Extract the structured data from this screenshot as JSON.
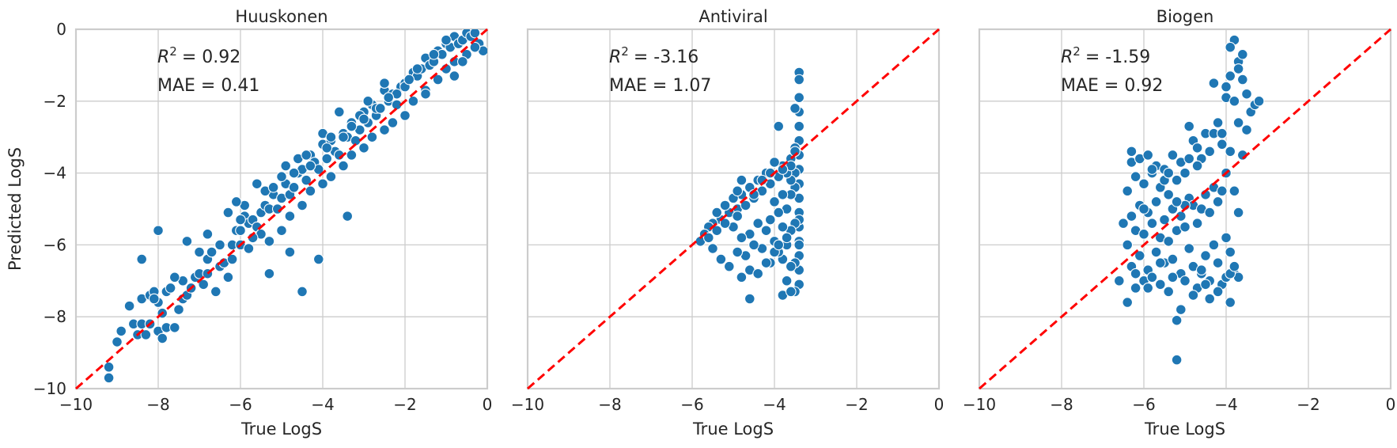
{
  "chart_data": [
    {
      "type": "scatter",
      "title": "Huuskonen",
      "xlabel": "True LogS",
      "ylabel": "Predicted LogS",
      "xlim": [
        -10,
        0
      ],
      "ylim": [
        -10,
        0
      ],
      "xticks": [
        "−10",
        "−8",
        "−6",
        "−4",
        "−2",
        "0"
      ],
      "yticks": [
        "−10",
        "−8",
        "−6",
        "−4",
        "−2",
        "0"
      ],
      "grid": true,
      "reference_line": "y = x",
      "annotations": {
        "r2_label": "R",
        "r2_value": "= 0.92",
        "mae": "MAE = 0.41"
      },
      "point_color": "#1f77b4",
      "line_color": "#ff0000",
      "x": [
        -9.2,
        -9.2,
        -9.0,
        -8.9,
        -8.7,
        -8.6,
        -8.5,
        -8.4,
        -8.4,
        -8.3,
        -8.2,
        -8.2,
        -8.1,
        -8.0,
        -8.0,
        -7.9,
        -7.9,
        -7.8,
        -7.8,
        -7.7,
        -7.6,
        -7.5,
        -7.4,
        -7.4,
        -7.3,
        -7.2,
        -7.1,
        -7.0,
        -7.0,
        -6.9,
        -6.8,
        -6.8,
        -6.7,
        -6.6,
        -6.5,
        -6.4,
        -6.3,
        -6.2,
        -6.2,
        -6.1,
        -6.0,
        -6.0,
        -5.9,
        -5.8,
        -5.8,
        -5.7,
        -5.6,
        -5.5,
        -5.5,
        -5.4,
        -5.3,
        -5.3,
        -5.2,
        -5.1,
        -5.0,
        -5.0,
        -4.9,
        -4.8,
        -4.8,
        -4.7,
        -4.6,
        -4.5,
        -4.5,
        -4.4,
        -4.3,
        -4.3,
        -4.2,
        -4.1,
        -4.0,
        -4.0,
        -3.9,
        -3.8,
        -3.8,
        -3.7,
        -3.6,
        -3.5,
        -3.5,
        -3.4,
        -3.3,
        -3.3,
        -3.2,
        -3.1,
        -3.0,
        -3.0,
        -2.9,
        -2.8,
        -2.8,
        -2.7,
        -2.6,
        -2.5,
        -2.5,
        -2.4,
        -2.3,
        -2.3,
        -2.2,
        -2.1,
        -2.0,
        -2.0,
        -1.9,
        -1.8,
        -1.8,
        -1.7,
        -1.6,
        -1.5,
        -1.5,
        -1.4,
        -1.3,
        -1.2,
        -1.2,
        -1.1,
        -1.0,
        -1.0,
        -0.9,
        -0.8,
        -0.8,
        -0.7,
        -0.6,
        -0.5,
        -0.5,
        -0.4,
        -0.3,
        -0.2,
        -0.1,
        -8.0,
        -8.4,
        -4.5,
        -4.1,
        -3.4,
        -4.8,
        -5.3,
        -6.5,
        -5.9,
        -4.0,
        -2.5,
        -1.3,
        -3.6,
        -5.6,
        -7.3,
        -2.9,
        -1.7,
        -4.6,
        -6.1,
        -3.1,
        -5.0,
        -2.2,
        -0.6,
        -1.0,
        -0.3,
        -2.7,
        -4.3,
        -6.8,
        -5.4,
        -3.8,
        -2.0,
        -1.5,
        -3.3,
        -4.9,
        -6.3,
        -7.6,
        -8.1,
        -0.8,
        -2.4,
        -3.9,
        -5.2,
        -4.4,
        -3.0,
        -1.9,
        -2.6,
        -3.5,
        -4.7,
        -6.0,
        -5.7
      ],
      "y": [
        -9.7,
        -9.4,
        -8.7,
        -8.4,
        -7.7,
        -8.2,
        -8.5,
        -7.5,
        -8.2,
        -8.5,
        -7.4,
        -8.2,
        -7.3,
        -7.6,
        -8.4,
        -8.6,
        -7.9,
        -7.3,
        -8.3,
        -7.2,
        -8.3,
        -7.8,
        -7.0,
        -7.5,
        -7.4,
        -7.2,
        -6.9,
        -6.8,
        -6.2,
        -7.1,
        -6.4,
        -6.8,
        -6.2,
        -7.3,
        -6.6,
        -6.5,
        -6.9,
        -6.0,
        -6.4,
        -5.6,
        -5.6,
        -6.0,
        -5.2,
        -5.4,
        -6.1,
        -5.3,
        -5.5,
        -5.1,
        -5.7,
        -4.9,
        -5.0,
        -5.9,
        -4.6,
        -5.0,
        -4.7,
        -5.6,
        -4.3,
        -4.6,
        -5.2,
        -4.4,
        -4.0,
        -3.9,
        -4.9,
        -4.2,
        -3.5,
        -4.5,
        -3.7,
        -3.9,
        -3.2,
        -4.3,
        -3.6,
        -3.1,
        -4.1,
        -3.4,
        -3.5,
        -2.9,
        -3.8,
        -3.0,
        -2.6,
        -3.5,
        -3.1,
        -2.8,
        -2.3,
        -3.3,
        -2.6,
        -2.1,
        -3.0,
        -2.4,
        -2.2,
        -1.7,
        -2.8,
        -2.0,
        -1.8,
        -2.6,
        -2.1,
        -1.6,
        -1.5,
        -2.4,
        -1.4,
        -1.2,
        -2.0,
        -1.3,
        -1.1,
        -0.8,
        -1.7,
        -1.0,
        -0.9,
        -0.6,
        -1.4,
        -0.7,
        -0.4,
        -1.1,
        -0.5,
        -0.2,
        -0.9,
        -0.4,
        -0.3,
        -0.1,
        -0.7,
        -0.2,
        -0.1,
        -0.4,
        -0.6,
        -5.6,
        -6.4,
        -7.3,
        -6.4,
        -5.2,
        -6.2,
        -6.8,
        -6.0,
        -4.9,
        -2.9,
        -1.5,
        -0.7,
        -2.3,
        -4.3,
        -5.9,
        -2.0,
        -1.1,
        -3.6,
        -4.8,
        -2.4,
        -4.1,
        -1.8,
        -0.9,
        -0.3,
        -0.5,
        -2.2,
        -3.8,
        -5.7,
        -4.5,
        -3.0,
        -1.6,
        -1.8,
        -2.7,
        -3.8,
        -5.1,
        -6.9,
        -7.5,
        -1.3,
        -1.9,
        -3.3,
        -4.4,
        -3.5,
        -2.5,
        -1.4,
        -2.2,
        -3.0,
        -4.0,
        -5.3,
        -5.8
      ]
    },
    {
      "type": "scatter",
      "title": "Antiviral",
      "xlabel": "True LogS",
      "ylabel": "",
      "xlim": [
        -10,
        0
      ],
      "ylim": [
        -10,
        0
      ],
      "xticks": [
        "−10",
        "−8",
        "−6",
        "−4",
        "−2",
        "0"
      ],
      "grid": true,
      "reference_line": "y = x",
      "annotations": {
        "r2_label": "R",
        "r2_value": "= -3.16",
        "mae": "MAE = 1.07"
      },
      "x": [
        -3.4,
        -3.4,
        -3.4,
        -3.4,
        -3.4,
        -3.4,
        -3.4,
        -3.4,
        -3.4,
        -3.4,
        -3.4,
        -3.4,
        -3.4,
        -3.4,
        -3.4,
        -3.4,
        -3.4,
        -3.4,
        -3.5,
        -3.5,
        -3.5,
        -3.5,
        -3.5,
        -3.5,
        -3.5,
        -3.6,
        -3.6,
        -3.6,
        -3.6,
        -3.6,
        -3.7,
        -3.7,
        -3.7,
        -3.7,
        -3.8,
        -3.8,
        -3.8,
        -3.8,
        -3.9,
        -3.9,
        -3.9,
        -4.0,
        -4.0,
        -4.0,
        -4.1,
        -4.1,
        -4.1,
        -4.2,
        -4.2,
        -4.3,
        -4.3,
        -4.4,
        -4.4,
        -4.5,
        -4.5,
        -4.6,
        -4.6,
        -4.7,
        -4.7,
        -4.8,
        -4.8,
        -4.9,
        -4.9,
        -5.0,
        -5.0,
        -5.1,
        -5.2,
        -5.3,
        -5.4,
        -5.5,
        -5.6,
        -5.7,
        -5.8,
        -5.5,
        -5.3,
        -5.1,
        -4.8,
        -4.6,
        -4.4,
        -4.2,
        -4.0,
        -3.9,
        -3.7,
        -3.5,
        -3.6,
        -3.8,
        -4.1,
        -4.3,
        -4.5,
        -4.7,
        -4.9,
        -5.2,
        -5.4,
        -5.6,
        -4.9,
        -3.8,
        -3.6,
        -3.9,
        -4.6,
        -4.8
      ],
      "y": [
        -1.2,
        -1.4,
        -1.9,
        -2.3,
        -2.7,
        -3.1,
        -3.5,
        -3.9,
        -4.3,
        -4.7,
        -5.1,
        -5.5,
        -5.9,
        -6.3,
        -6.7,
        -7.1,
        -6.0,
        -5.3,
        -2.2,
        -3.3,
        -4.4,
        -5.4,
        -6.5,
        -7.3,
        -4.0,
        -3.6,
        -4.6,
        -5.6,
        -6.6,
        -4.2,
        -4.0,
        -5.0,
        -6.0,
        -7.0,
        -3.8,
        -4.6,
        -5.5,
        -6.4,
        -4.1,
        -5.1,
        -6.2,
        -3.7,
        -4.8,
        -5.9,
        -4.3,
        -5.3,
        -6.5,
        -4.0,
        -5.6,
        -4.5,
        -6.1,
        -4.2,
        -5.4,
        -4.7,
        -6.0,
        -4.4,
        -5.7,
        -4.9,
        -6.3,
        -4.6,
        -5.8,
        -5.0,
        -6.2,
        -4.7,
        -5.5,
        -5.1,
        -4.9,
        -5.3,
        -5.1,
        -5.4,
        -5.5,
        -5.7,
        -5.9,
        -6.1,
        -6.4,
        -6.6,
        -6.9,
        -6.7,
        -6.8,
        -6.5,
        -6.2,
        -6.0,
        -5.8,
        -3.4,
        -3.8,
        -3.9,
        -4.0,
        -4.2,
        -4.6,
        -4.9,
        -5.2,
        -5.4,
        -5.6,
        -5.8,
        -4.5,
        -7.4,
        -7.3,
        -2.7,
        -7.5,
        -4.2
      ]
    },
    {
      "type": "scatter",
      "title": "Biogen",
      "xlabel": "True LogS",
      "ylabel": "",
      "xlim": [
        -10,
        0
      ],
      "ylim": [
        -10,
        0
      ],
      "xticks": [
        "−10",
        "−8",
        "−6",
        "−4",
        "−2",
        "0"
      ],
      "grid": true,
      "reference_line": "y = x",
      "annotations": {
        "r2_label": "R",
        "r2_value": "= -1.59",
        "mae": "MAE = 0.92"
      },
      "x": [
        -6.5,
        -6.4,
        -6.4,
        -6.3,
        -6.3,
        -6.3,
        -6.2,
        -6.2,
        -6.2,
        -6.1,
        -6.1,
        -6.1,
        -6.0,
        -6.0,
        -6.0,
        -5.9,
        -5.9,
        -5.9,
        -5.8,
        -5.8,
        -5.8,
        -5.7,
        -5.7,
        -5.7,
        -5.6,
        -5.6,
        -5.6,
        -5.5,
        -5.5,
        -5.5,
        -5.4,
        -5.4,
        -5.4,
        -5.3,
        -5.3,
        -5.3,
        -5.2,
        -5.2,
        -5.2,
        -5.1,
        -5.1,
        -5.1,
        -5.0,
        -5.0,
        -5.0,
        -4.9,
        -4.9,
        -4.9,
        -4.8,
        -4.8,
        -4.8,
        -4.7,
        -4.7,
        -4.7,
        -4.6,
        -4.6,
        -4.6,
        -4.5,
        -4.5,
        -4.5,
        -4.4,
        -4.4,
        -4.4,
        -4.3,
        -4.3,
        -4.3,
        -4.2,
        -4.2,
        -4.2,
        -4.1,
        -4.1,
        -4.1,
        -4.0,
        -4.0,
        -4.0,
        -3.9,
        -3.9,
        -3.9,
        -3.8,
        -3.8,
        -3.8,
        -3.8,
        -3.7,
        -3.7,
        -3.7,
        -3.6,
        -3.6,
        -3.5,
        -3.5,
        -3.4,
        -3.3,
        -3.2,
        -6.6,
        -6.4,
        -6.2,
        -5.9,
        -5.6,
        -5.3,
        -5.2,
        -5.1,
        -4.8,
        -4.5,
        -4.2,
        -4.0,
        -3.9,
        -3.7,
        -4.6,
        -4.4,
        -3.9,
        -3.8,
        -6.3,
        -5.8,
        -5.5,
        -5.0,
        -4.7,
        -4.1,
        -3.9,
        -4.3,
        -4.9,
        -5.4,
        -6.0,
        -4.0,
        -3.7,
        -3.6,
        -5.2
      ],
      "y": [
        -5.4,
        -6.0,
        -4.5,
        -3.7,
        -5.2,
        -6.6,
        -4.1,
        -5.6,
        -7.2,
        -3.6,
        -4.9,
        -6.3,
        -4.3,
        -5.7,
        -7.0,
        -3.5,
        -5.1,
        -6.7,
        -4.0,
        -5.4,
        -6.9,
        -3.8,
        -4.8,
        -6.2,
        -4.4,
        -5.8,
        -7.1,
        -3.9,
        -5.3,
        -6.5,
        -4.6,
        -5.9,
        -7.3,
        -3.5,
        -5.0,
        -6.4,
        -4.2,
        -5.6,
        -8.1,
        -3.7,
        -5.2,
        -6.8,
        -4.0,
        -5.5,
        -7.0,
        -3.6,
        -4.7,
        -6.1,
        -3.1,
        -4.9,
        -6.6,
        -3.3,
        -5.4,
        -7.2,
        -3.6,
        -5.0,
        -6.8,
        -2.9,
        -4.6,
        -6.3,
        -3.4,
        -5.1,
        -7.0,
        -2.9,
        -4.4,
        -6.0,
        -2.6,
        -4.8,
        -6.5,
        -3.2,
        -4.5,
        -7.1,
        -1.9,
        -4.0,
        -5.8,
        -1.3,
        -3.4,
        -6.2,
        -0.3,
        -2.0,
        -4.5,
        -6.8,
        -0.9,
        -2.6,
        -5.1,
        -1.4,
        -3.5,
        -1.8,
        -2.8,
        -2.3,
        -2.1,
        -2.0,
        -7.0,
        -7.6,
        -6.8,
        -7.2,
        -6.5,
        -6.9,
        -9.2,
        -7.8,
        -7.4,
        -7.1,
        -7.3,
        -6.9,
        -7.6,
        -6.9,
        -6.7,
        -7.5,
        -6.8,
        -6.6,
        -3.4,
        -3.9,
        -4.2,
        -4.9,
        -3.8,
        -2.9,
        -0.5,
        -1.5,
        -2.7,
        -4.0,
        -5.0,
        -1.6,
        -1.1,
        -0.7,
        -4.8
      ]
    }
  ]
}
